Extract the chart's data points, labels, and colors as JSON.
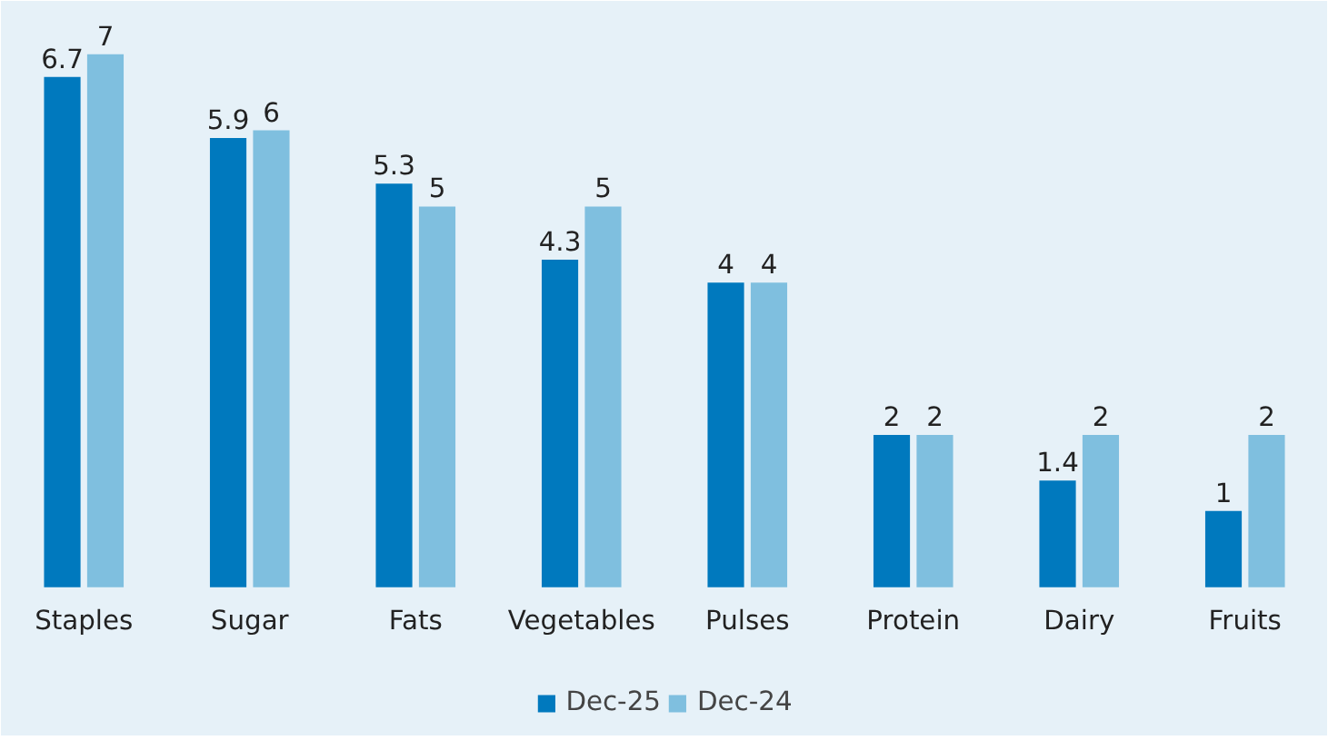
{
  "chart_data": {
    "type": "bar",
    "categories": [
      "Staples",
      "Sugar",
      "Fats",
      "Vegetables",
      "Pulses",
      "Protein",
      "Dairy",
      "Fruits"
    ],
    "series": [
      {
        "name": "Dec-25",
        "color": "#0079be",
        "values": [
          6.7,
          5.9,
          5.3,
          4.3,
          4,
          2,
          1.4,
          1
        ]
      },
      {
        "name": "Dec-24",
        "color": "#7fbfdf",
        "values": [
          7,
          6,
          5,
          5,
          4,
          2,
          2,
          2
        ]
      }
    ],
    "data_labels": true,
    "legend": "bottom"
  }
}
